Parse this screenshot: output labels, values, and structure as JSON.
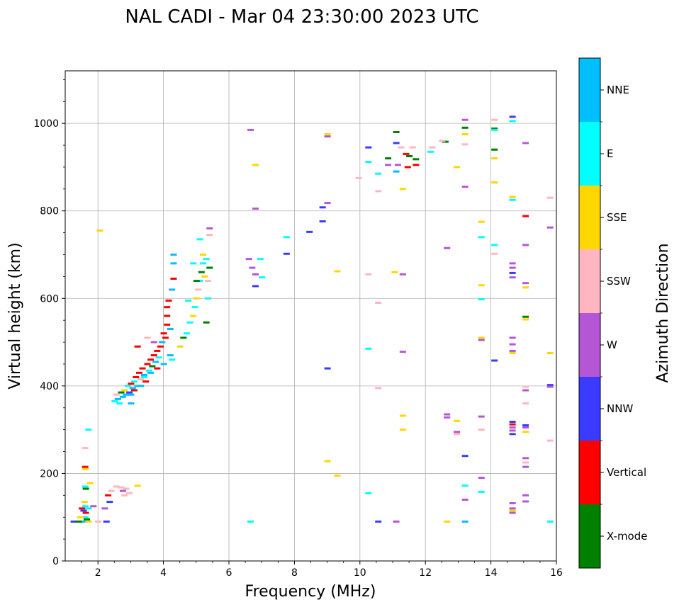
{
  "chart_data": {
    "type": "scatter",
    "title": "NAL CADI - Mar 04 23:30:00 2023 UTC",
    "xlabel": "Frequency (MHz)",
    "ylabel": "Virtual height (km)",
    "xlim": [
      1,
      16
    ],
    "ylim": [
      0,
      1120
    ],
    "xticks": [
      2,
      4,
      6,
      8,
      10,
      12,
      14,
      16
    ],
    "yticks": [
      0,
      200,
      400,
      600,
      800,
      1000
    ],
    "grid": true,
    "colorbar": {
      "title": "Azimuth Direction",
      "categories": [
        {
          "name": "X-mode",
          "color": "#008000"
        },
        {
          "name": "Vertical",
          "color": "#ff0000"
        },
        {
          "name": "NNW",
          "color": "#3b3bff"
        },
        {
          "name": "W",
          "color": "#b556d6"
        },
        {
          "name": "SSW",
          "color": "#ffb6c1"
        },
        {
          "name": "SSE",
          "color": "#ffd700"
        },
        {
          "name": "E",
          "color": "#00ffff"
        },
        {
          "name": "NNE",
          "color": "#00bfff"
        }
      ]
    },
    "points": [
      {
        "f": 1.55,
        "h": 90,
        "c": "NNE"
      },
      {
        "f": 1.6,
        "h": 100,
        "c": "E"
      },
      {
        "f": 1.65,
        "h": 95,
        "c": "X-mode"
      },
      {
        "f": 1.55,
        "h": 115,
        "c": "NNW"
      },
      {
        "f": 1.6,
        "h": 125,
        "c": "E"
      },
      {
        "f": 1.62,
        "h": 110,
        "c": "Vertical"
      },
      {
        "f": 1.58,
        "h": 135,
        "c": "SSE"
      },
      {
        "f": 1.6,
        "h": 170,
        "c": "E"
      },
      {
        "f": 1.62,
        "h": 165,
        "c": "X-mode"
      },
      {
        "f": 1.6,
        "h": 210,
        "c": "SSE"
      },
      {
        "f": 1.6,
        "h": 215,
        "c": "Vertical"
      },
      {
        "f": 1.6,
        "h": 258,
        "c": "SSW"
      },
      {
        "f": 1.7,
        "h": 300,
        "c": "E"
      },
      {
        "f": 1.75,
        "h": 178,
        "c": "SSE"
      },
      {
        "f": 1.5,
        "h": 120,
        "c": "Vertical"
      },
      {
        "f": 1.45,
        "h": 100,
        "c": "SSE"
      },
      {
        "f": 1.7,
        "h": 90,
        "c": "SSE"
      },
      {
        "f": 1.25,
        "h": 90,
        "c": "NNW"
      },
      {
        "f": 1.4,
        "h": 90,
        "c": "X-mode"
      },
      {
        "f": 1.7,
        "h": 120,
        "c": "E"
      },
      {
        "f": 2.05,
        "h": 755,
        "c": "SSE"
      },
      {
        "f": 2.2,
        "h": 120,
        "c": "W"
      },
      {
        "f": 2.25,
        "h": 90,
        "c": "NNW"
      },
      {
        "f": 2.3,
        "h": 150,
        "c": "Vertical"
      },
      {
        "f": 2.35,
        "h": 135,
        "c": "NNW"
      },
      {
        "f": 2.4,
        "h": 160,
        "c": "SSW"
      },
      {
        "f": 2.55,
        "h": 170,
        "c": "SSW"
      },
      {
        "f": 2.7,
        "h": 168,
        "c": "SSW"
      },
      {
        "f": 2.75,
        "h": 160,
        "c": "W"
      },
      {
        "f": 2.8,
        "h": 150,
        "c": "SSW"
      },
      {
        "f": 2.85,
        "h": 165,
        "c": "SSW"
      },
      {
        "f": 2.95,
        "h": 155,
        "c": "SSW"
      },
      {
        "f": 3.2,
        "h": 172,
        "c": "SSE"
      },
      {
        "f": 2.0,
        "h": 90,
        "c": "SSW"
      },
      {
        "f": 1.85,
        "h": 125,
        "c": "W"
      },
      {
        "f": 2.5,
        "h": 365,
        "c": "E"
      },
      {
        "f": 2.55,
        "h": 380,
        "c": "SSW"
      },
      {
        "f": 2.6,
        "h": 370,
        "c": "NNE"
      },
      {
        "f": 2.65,
        "h": 360,
        "c": "E"
      },
      {
        "f": 2.7,
        "h": 385,
        "c": "X-mode"
      },
      {
        "f": 2.75,
        "h": 375,
        "c": "NNE"
      },
      {
        "f": 2.8,
        "h": 390,
        "c": "SSE"
      },
      {
        "f": 2.85,
        "h": 380,
        "c": "NNE"
      },
      {
        "f": 2.9,
        "h": 400,
        "c": "E"
      },
      {
        "f": 2.95,
        "h": 385,
        "c": "NNW"
      },
      {
        "f": 3.0,
        "h": 405,
        "c": "Vertical"
      },
      {
        "f": 3.05,
        "h": 395,
        "c": "NNE"
      },
      {
        "f": 3.1,
        "h": 410,
        "c": "E"
      },
      {
        "f": 3.15,
        "h": 420,
        "c": "Vertical"
      },
      {
        "f": 3.2,
        "h": 400,
        "c": "NNE"
      },
      {
        "f": 3.25,
        "h": 430,
        "c": "Vertical"
      },
      {
        "f": 3.3,
        "h": 415,
        "c": "SSW"
      },
      {
        "f": 3.35,
        "h": 440,
        "c": "Vertical"
      },
      {
        "f": 3.4,
        "h": 425,
        "c": "NNE"
      },
      {
        "f": 3.45,
        "h": 410,
        "c": "Vertical"
      },
      {
        "f": 3.5,
        "h": 450,
        "c": "Vertical"
      },
      {
        "f": 3.55,
        "h": 435,
        "c": "E"
      },
      {
        "f": 3.6,
        "h": 460,
        "c": "Vertical"
      },
      {
        "f": 3.65,
        "h": 445,
        "c": "X-mode"
      },
      {
        "f": 3.7,
        "h": 470,
        "c": "Vertical"
      },
      {
        "f": 3.75,
        "h": 455,
        "c": "NNE"
      },
      {
        "f": 3.8,
        "h": 480,
        "c": "Vertical"
      },
      {
        "f": 3.85,
        "h": 465,
        "c": "E"
      },
      {
        "f": 3.9,
        "h": 490,
        "c": "Vertical"
      },
      {
        "f": 3.95,
        "h": 500,
        "c": "NNE"
      },
      {
        "f": 4.0,
        "h": 520,
        "c": "Vertical"
      },
      {
        "f": 4.05,
        "h": 510,
        "c": "Vertical"
      },
      {
        "f": 4.1,
        "h": 540,
        "c": "Vertical"
      },
      {
        "f": 4.1,
        "h": 560,
        "c": "Vertical"
      },
      {
        "f": 4.1,
        "h": 580,
        "c": "Vertical"
      },
      {
        "f": 4.15,
        "h": 595,
        "c": "Vertical"
      },
      {
        "f": 4.2,
        "h": 470,
        "c": "NNE"
      },
      {
        "f": 4.25,
        "h": 460,
        "c": "E"
      },
      {
        "f": 4.2,
        "h": 530,
        "c": "NNE"
      },
      {
        "f": 4.25,
        "h": 620,
        "c": "NNE"
      },
      {
        "f": 4.3,
        "h": 645,
        "c": "Vertical"
      },
      {
        "f": 4.3,
        "h": 700,
        "c": "NNE"
      },
      {
        "f": 4.3,
        "h": 680,
        "c": "NNE"
      },
      {
        "f": 3.0,
        "h": 380,
        "c": "NNE"
      },
      {
        "f": 3.1,
        "h": 390,
        "c": "Vertical"
      },
      {
        "f": 3.3,
        "h": 400,
        "c": "NNE"
      },
      {
        "f": 3.4,
        "h": 420,
        "c": "E"
      },
      {
        "f": 3.6,
        "h": 430,
        "c": "NNE"
      },
      {
        "f": 3.8,
        "h": 440,
        "c": "Vertical"
      },
      {
        "f": 4.0,
        "h": 450,
        "c": "NNE"
      },
      {
        "f": 3.2,
        "h": 490,
        "c": "Vertical"
      },
      {
        "f": 3.5,
        "h": 510,
        "c": "SSW"
      },
      {
        "f": 3.7,
        "h": 500,
        "c": "W"
      },
      {
        "f": 3.0,
        "h": 360,
        "c": "NNE"
      },
      {
        "f": 4.5,
        "h": 490,
        "c": "SSE"
      },
      {
        "f": 4.6,
        "h": 510,
        "c": "X-mode"
      },
      {
        "f": 4.7,
        "h": 520,
        "c": "E"
      },
      {
        "f": 4.8,
        "h": 545,
        "c": "E"
      },
      {
        "f": 4.9,
        "h": 560,
        "c": "SSE"
      },
      {
        "f": 4.95,
        "h": 580,
        "c": "E"
      },
      {
        "f": 5.0,
        "h": 600,
        "c": "SSE"
      },
      {
        "f": 5.05,
        "h": 620,
        "c": "SSW"
      },
      {
        "f": 5.1,
        "h": 640,
        "c": "E"
      },
      {
        "f": 5.15,
        "h": 660,
        "c": "X-mode"
      },
      {
        "f": 5.2,
        "h": 680,
        "c": "E"
      },
      {
        "f": 5.25,
        "h": 650,
        "c": "SSE"
      },
      {
        "f": 5.3,
        "h": 690,
        "c": "E"
      },
      {
        "f": 5.35,
        "h": 640,
        "c": "SSW"
      },
      {
        "f": 5.4,
        "h": 670,
        "c": "X-mode"
      },
      {
        "f": 5.3,
        "h": 545,
        "c": "X-mode"
      },
      {
        "f": 5.35,
        "h": 600,
        "c": "E"
      },
      {
        "f": 5.4,
        "h": 760,
        "c": "W"
      },
      {
        "f": 5.4,
        "h": 745,
        "c": "SSW"
      },
      {
        "f": 5.1,
        "h": 735,
        "c": "E"
      },
      {
        "f": 5.2,
        "h": 700,
        "c": "SSE"
      },
      {
        "f": 4.9,
        "h": 680,
        "c": "E"
      },
      {
        "f": 5.0,
        "h": 640,
        "c": "X-mode"
      },
      {
        "f": 4.75,
        "h": 595,
        "c": "E"
      },
      {
        "f": 6.6,
        "h": 690,
        "c": "W"
      },
      {
        "f": 6.65,
        "h": 985,
        "c": "W"
      },
      {
        "f": 6.7,
        "h": 670,
        "c": "W"
      },
      {
        "f": 6.8,
        "h": 905,
        "c": "SSE"
      },
      {
        "f": 6.8,
        "h": 805,
        "c": "W"
      },
      {
        "f": 6.8,
        "h": 655,
        "c": "W"
      },
      {
        "f": 6.8,
        "h": 628,
        "c": "NNW"
      },
      {
        "f": 6.95,
        "h": 690,
        "c": "E"
      },
      {
        "f": 7.0,
        "h": 648,
        "c": "E"
      },
      {
        "f": 6.65,
        "h": 90,
        "c": "E"
      },
      {
        "f": 7.75,
        "h": 740,
        "c": "E"
      },
      {
        "f": 7.75,
        "h": 702,
        "c": "NNW"
      },
      {
        "f": 8.45,
        "h": 752,
        "c": "NNW"
      },
      {
        "f": 8.85,
        "h": 808,
        "c": "NNW"
      },
      {
        "f": 8.85,
        "h": 776,
        "c": "NNW"
      },
      {
        "f": 9.0,
        "h": 818,
        "c": "W"
      },
      {
        "f": 9.0,
        "h": 975,
        "c": "SSE"
      },
      {
        "f": 9.0,
        "h": 970,
        "c": "W"
      },
      {
        "f": 9.0,
        "h": 440,
        "c": "NNW"
      },
      {
        "f": 9.0,
        "h": 228,
        "c": "SSE"
      },
      {
        "f": 9.3,
        "h": 662,
        "c": "SSE"
      },
      {
        "f": 9.3,
        "h": 195,
        "c": "SSE"
      },
      {
        "f": 9.95,
        "h": 875,
        "c": "SSW"
      },
      {
        "f": 10.25,
        "h": 945,
        "c": "NNW"
      },
      {
        "f": 10.25,
        "h": 912,
        "c": "E"
      },
      {
        "f": 10.25,
        "h": 655,
        "c": "SSW"
      },
      {
        "f": 10.25,
        "h": 485,
        "c": "E"
      },
      {
        "f": 10.25,
        "h": 155,
        "c": "E"
      },
      {
        "f": 10.55,
        "h": 885,
        "c": "E"
      },
      {
        "f": 10.55,
        "h": 845,
        "c": "SSW"
      },
      {
        "f": 10.55,
        "h": 590,
        "c": "SSW"
      },
      {
        "f": 10.55,
        "h": 395,
        "c": "SSW"
      },
      {
        "f": 10.55,
        "h": 90,
        "c": "NNW"
      },
      {
        "f": 10.85,
        "h": 920,
        "c": "X-mode"
      },
      {
        "f": 10.85,
        "h": 905,
        "c": "W"
      },
      {
        "f": 11.1,
        "h": 980,
        "c": "X-mode"
      },
      {
        "f": 11.1,
        "h": 955,
        "c": "NNW"
      },
      {
        "f": 11.15,
        "h": 905,
        "c": "W"
      },
      {
        "f": 11.1,
        "h": 890,
        "c": "NNE"
      },
      {
        "f": 11.05,
        "h": 660,
        "c": "SSE"
      },
      {
        "f": 11.3,
        "h": 655,
        "c": "W"
      },
      {
        "f": 11.3,
        "h": 478,
        "c": "W"
      },
      {
        "f": 11.3,
        "h": 332,
        "c": "SSE"
      },
      {
        "f": 11.3,
        "h": 300,
        "c": "SSE"
      },
      {
        "f": 11.3,
        "h": 850,
        "c": "SSE"
      },
      {
        "f": 11.4,
        "h": 930,
        "c": "Vertical"
      },
      {
        "f": 11.5,
        "h": 925,
        "c": "X-mode"
      },
      {
        "f": 11.45,
        "h": 900,
        "c": "Vertical"
      },
      {
        "f": 11.6,
        "h": 945,
        "c": "SSW"
      },
      {
        "f": 11.7,
        "h": 918,
        "c": "X-mode"
      },
      {
        "f": 11.7,
        "h": 905,
        "c": "Vertical"
      },
      {
        "f": 11.1,
        "h": 90,
        "c": "W"
      },
      {
        "f": 11.25,
        "h": 945,
        "c": "SSW"
      },
      {
        "f": 12.15,
        "h": 935,
        "c": "E"
      },
      {
        "f": 12.2,
        "h": 945,
        "c": "SSW"
      },
      {
        "f": 12.6,
        "h": 958,
        "c": "X-mode"
      },
      {
        "f": 12.5,
        "h": 960,
        "c": "SSW"
      },
      {
        "f": 12.65,
        "h": 715,
        "c": "W"
      },
      {
        "f": 12.65,
        "h": 335,
        "c": "W"
      },
      {
        "f": 12.65,
        "h": 328,
        "c": "W"
      },
      {
        "f": 12.65,
        "h": 90,
        "c": "SSE"
      },
      {
        "f": 12.95,
        "h": 900,
        "c": "SSE"
      },
      {
        "f": 12.95,
        "h": 320,
        "c": "SSE"
      },
      {
        "f": 12.95,
        "h": 295,
        "c": "W"
      },
      {
        "f": 12.95,
        "h": 290,
        "c": "SSW"
      },
      {
        "f": 13.2,
        "h": 1008,
        "c": "W"
      },
      {
        "f": 13.2,
        "h": 990,
        "c": "X-mode"
      },
      {
        "f": 13.2,
        "h": 975,
        "c": "SSE"
      },
      {
        "f": 13.2,
        "h": 952,
        "c": "SSW"
      },
      {
        "f": 13.2,
        "h": 855,
        "c": "W"
      },
      {
        "f": 13.2,
        "h": 240,
        "c": "NNW"
      },
      {
        "f": 13.2,
        "h": 172,
        "c": "E"
      },
      {
        "f": 13.2,
        "h": 140,
        "c": "W"
      },
      {
        "f": 13.2,
        "h": 90,
        "c": "NNE"
      },
      {
        "f": 13.7,
        "h": 775,
        "c": "SSE"
      },
      {
        "f": 13.7,
        "h": 740,
        "c": "E"
      },
      {
        "f": 13.7,
        "h": 630,
        "c": "SSE"
      },
      {
        "f": 13.7,
        "h": 598,
        "c": "E"
      },
      {
        "f": 13.7,
        "h": 510,
        "c": "SSE"
      },
      {
        "f": 13.7,
        "h": 505,
        "c": "W"
      },
      {
        "f": 13.7,
        "h": 330,
        "c": "W"
      },
      {
        "f": 13.7,
        "h": 300,
        "c": "SSW"
      },
      {
        "f": 13.7,
        "h": 190,
        "c": "W"
      },
      {
        "f": 13.7,
        "h": 158,
        "c": "E"
      },
      {
        "f": 14.1,
        "h": 1008,
        "c": "SSW"
      },
      {
        "f": 14.1,
        "h": 988,
        "c": "X-mode"
      },
      {
        "f": 14.1,
        "h": 985,
        "c": "E"
      },
      {
        "f": 14.1,
        "h": 940,
        "c": "X-mode"
      },
      {
        "f": 14.1,
        "h": 920,
        "c": "SSE"
      },
      {
        "f": 14.1,
        "h": 865,
        "c": "SSE"
      },
      {
        "f": 14.1,
        "h": 722,
        "c": "E"
      },
      {
        "f": 14.1,
        "h": 702,
        "c": "SSW"
      },
      {
        "f": 14.1,
        "h": 458,
        "c": "NNW"
      },
      {
        "f": 14.65,
        "h": 1015,
        "c": "NNW"
      },
      {
        "f": 14.65,
        "h": 1005,
        "c": "E"
      },
      {
        "f": 14.65,
        "h": 832,
        "c": "SSE"
      },
      {
        "f": 14.65,
        "h": 825,
        "c": "E"
      },
      {
        "f": 14.65,
        "h": 680,
        "c": "W"
      },
      {
        "f": 14.65,
        "h": 670,
        "c": "W"
      },
      {
        "f": 14.65,
        "h": 658,
        "c": "NNW"
      },
      {
        "f": 14.65,
        "h": 648,
        "c": "W"
      },
      {
        "f": 14.65,
        "h": 510,
        "c": "W"
      },
      {
        "f": 14.65,
        "h": 495,
        "c": "W"
      },
      {
        "f": 14.65,
        "h": 480,
        "c": "W"
      },
      {
        "f": 14.65,
        "h": 475,
        "c": "SSE"
      },
      {
        "f": 14.65,
        "h": 318,
        "c": "NNW"
      },
      {
        "f": 14.65,
        "h": 312,
        "c": "Vertical"
      },
      {
        "f": 14.65,
        "h": 305,
        "c": "W"
      },
      {
        "f": 14.65,
        "h": 298,
        "c": "W"
      },
      {
        "f": 14.65,
        "h": 290,
        "c": "NNW"
      },
      {
        "f": 14.65,
        "h": 132,
        "c": "W"
      },
      {
        "f": 14.65,
        "h": 120,
        "c": "W"
      },
      {
        "f": 14.65,
        "h": 115,
        "c": "SSE"
      },
      {
        "f": 14.65,
        "h": 110,
        "c": "W"
      },
      {
        "f": 15.05,
        "h": 955,
        "c": "W"
      },
      {
        "f": 15.05,
        "h": 788,
        "c": "Vertical"
      },
      {
        "f": 15.05,
        "h": 722,
        "c": "W"
      },
      {
        "f": 15.05,
        "h": 635,
        "c": "W"
      },
      {
        "f": 15.05,
        "h": 625,
        "c": "SSE"
      },
      {
        "f": 15.05,
        "h": 558,
        "c": "X-mode"
      },
      {
        "f": 15.05,
        "h": 552,
        "c": "SSE"
      },
      {
        "f": 15.05,
        "h": 398,
        "c": "SSW"
      },
      {
        "f": 15.05,
        "h": 390,
        "c": "W"
      },
      {
        "f": 15.05,
        "h": 360,
        "c": "SSW"
      },
      {
        "f": 15.05,
        "h": 310,
        "c": "NNW"
      },
      {
        "f": 15.05,
        "h": 305,
        "c": "W"
      },
      {
        "f": 15.05,
        "h": 295,
        "c": "SSE"
      },
      {
        "f": 15.05,
        "h": 235,
        "c": "W"
      },
      {
        "f": 15.05,
        "h": 225,
        "c": "SSW"
      },
      {
        "f": 15.05,
        "h": 215,
        "c": "W"
      },
      {
        "f": 15.05,
        "h": 150,
        "c": "W"
      },
      {
        "f": 15.05,
        "h": 136,
        "c": "W"
      },
      {
        "f": 15.8,
        "h": 830,
        "c": "SSW"
      },
      {
        "f": 15.8,
        "h": 762,
        "c": "W"
      },
      {
        "f": 15.8,
        "h": 475,
        "c": "SSE"
      },
      {
        "f": 15.8,
        "h": 402,
        "c": "NNW"
      },
      {
        "f": 15.8,
        "h": 398,
        "c": "W"
      },
      {
        "f": 15.8,
        "h": 275,
        "c": "SSW"
      },
      {
        "f": 15.8,
        "h": 90,
        "c": "E"
      }
    ]
  }
}
